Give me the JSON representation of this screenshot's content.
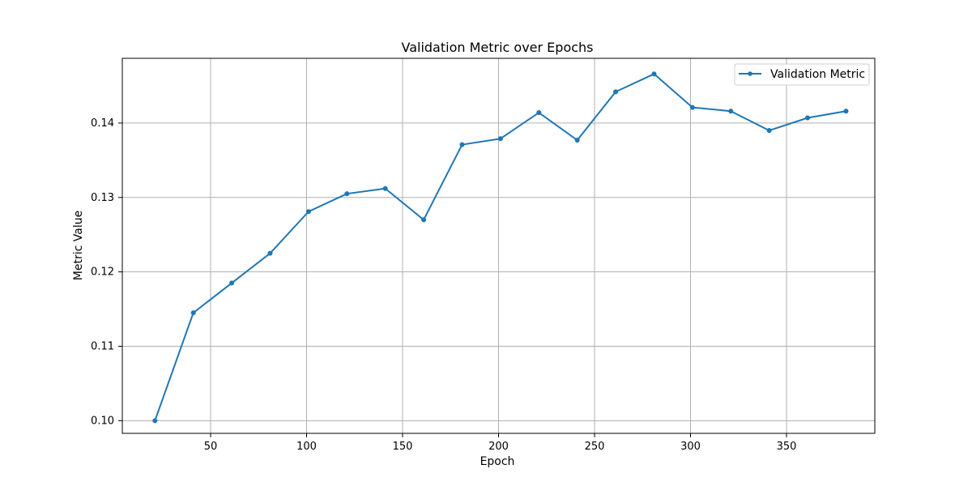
{
  "chart_data": {
    "type": "line",
    "title": "Validation Metric over Epochs",
    "xlabel": "Epoch",
    "ylabel": "Metric Value",
    "xlim": [
      4,
      396
    ],
    "ylim": [
      0.0983,
      0.1487
    ],
    "xticks": [
      50,
      100,
      150,
      200,
      250,
      300,
      350
    ],
    "yticks": [
      0.1,
      0.11,
      0.12,
      0.13,
      0.14
    ],
    "xtick_labels": [
      "50",
      "100",
      "150",
      "200",
      "250",
      "300",
      "350"
    ],
    "ytick_labels": [
      "0.10",
      "0.11",
      "0.12",
      "0.13",
      "0.14"
    ],
    "grid": true,
    "legend_position": "top-right",
    "series": [
      {
        "name": "Validation Metric",
        "color": "#1f77b4",
        "x": [
          21,
          41,
          61,
          81,
          101,
          121,
          141,
          161,
          181,
          201,
          221,
          241,
          261,
          281,
          301,
          321,
          341,
          361,
          381
        ],
        "y": [
          0.1,
          0.1145,
          0.1185,
          0.1225,
          0.1281,
          0.1305,
          0.1312,
          0.127,
          0.1371,
          0.1379,
          0.1414,
          0.1377,
          0.1442,
          0.1466,
          0.1421,
          0.1416,
          0.139,
          0.1407,
          0.1416
        ]
      }
    ]
  }
}
